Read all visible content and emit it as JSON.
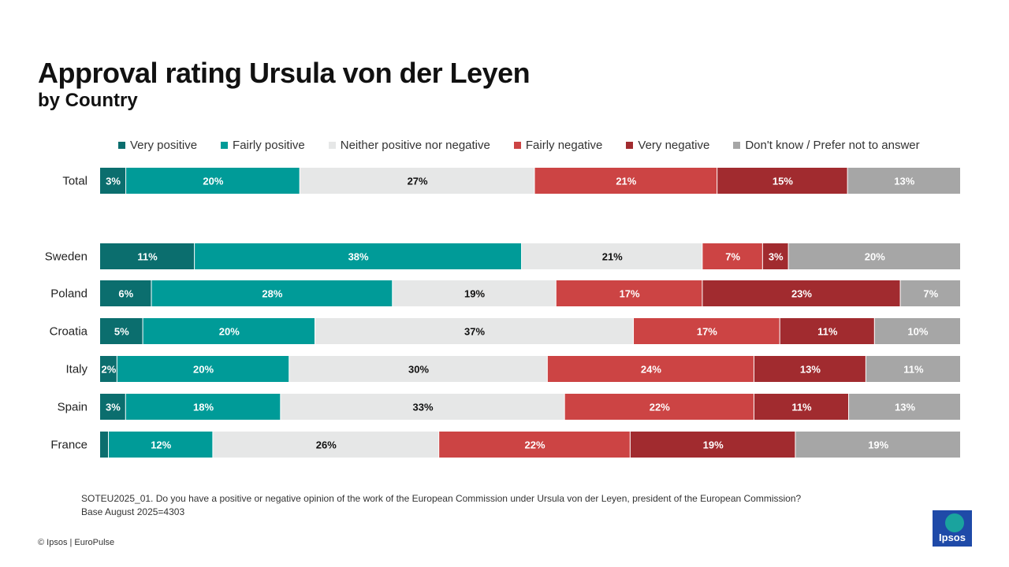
{
  "title": "Approval rating Ursula von der Leyen",
  "subtitle": "by Country",
  "footnote": {
    "question": "SOTEU2025_01. Do you have a positive or negative opinion of the work of the European Commission under Ursula von der Leyen, president of the European Commission?",
    "base": "Base August 2025=4303"
  },
  "copyright": "© Ipsos | EuroPulse",
  "logo_text": "Ipsos",
  "colors": {
    "very_positive": "#0b6e6e",
    "fairly_positive": "#009b98",
    "neither": "#e6e7e7",
    "fairly_negative": "#cc4444",
    "very_negative": "#a12b2f",
    "dont_know": "#a6a6a6"
  },
  "chart_data": {
    "type": "bar",
    "orientation": "horizontal-stacked-100",
    "categories": [
      "Total",
      "Sweden",
      "Poland",
      "Croatia",
      "Italy",
      "Spain",
      "France"
    ],
    "series": [
      {
        "name": "Very positive",
        "color": "#0b6e6e",
        "label_color": "#ffffff",
        "values": [
          3,
          11,
          6,
          5,
          2,
          3,
          1
        ],
        "labels": [
          "3%",
          "11%",
          "6%",
          "5%",
          "2%",
          "3%",
          ""
        ]
      },
      {
        "name": "Fairly positive",
        "color": "#009b98",
        "label_color": "#ffffff",
        "values": [
          20,
          38,
          28,
          20,
          20,
          18,
          12
        ],
        "labels": [
          "20%",
          "38%",
          "28%",
          "20%",
          "20%",
          "18%",
          "12%"
        ]
      },
      {
        "name": "Neither positive nor negative",
        "color": "#e6e7e7",
        "label_color": "#111111",
        "values": [
          27,
          21,
          19,
          37,
          30,
          33,
          26
        ],
        "labels": [
          "27%",
          "21%",
          "19%",
          "37%",
          "30%",
          "33%",
          "26%"
        ]
      },
      {
        "name": "Fairly negative",
        "color": "#cc4444",
        "label_color": "#ffffff",
        "values": [
          21,
          7,
          17,
          17,
          24,
          22,
          22
        ],
        "labels": [
          "21%",
          "7%",
          "17%",
          "17%",
          "24%",
          "22%",
          "22%"
        ]
      },
      {
        "name": "Very negative",
        "color": "#a12b2f",
        "label_color": "#ffffff",
        "values": [
          15,
          3,
          23,
          11,
          13,
          11,
          19
        ],
        "labels": [
          "15%",
          "3%",
          "23%",
          "11%",
          "13%",
          "11%",
          "19%"
        ]
      },
      {
        "name": "Don't know / Prefer not to answer",
        "color": "#a6a6a6",
        "label_color": "#ffffff",
        "values": [
          13,
          20,
          7,
          10,
          11,
          13,
          19
        ],
        "labels": [
          "13%",
          "20%",
          "7%",
          "10%",
          "11%",
          "13%",
          "19%"
        ]
      }
    ],
    "legend_position": "top",
    "grid": false
  }
}
